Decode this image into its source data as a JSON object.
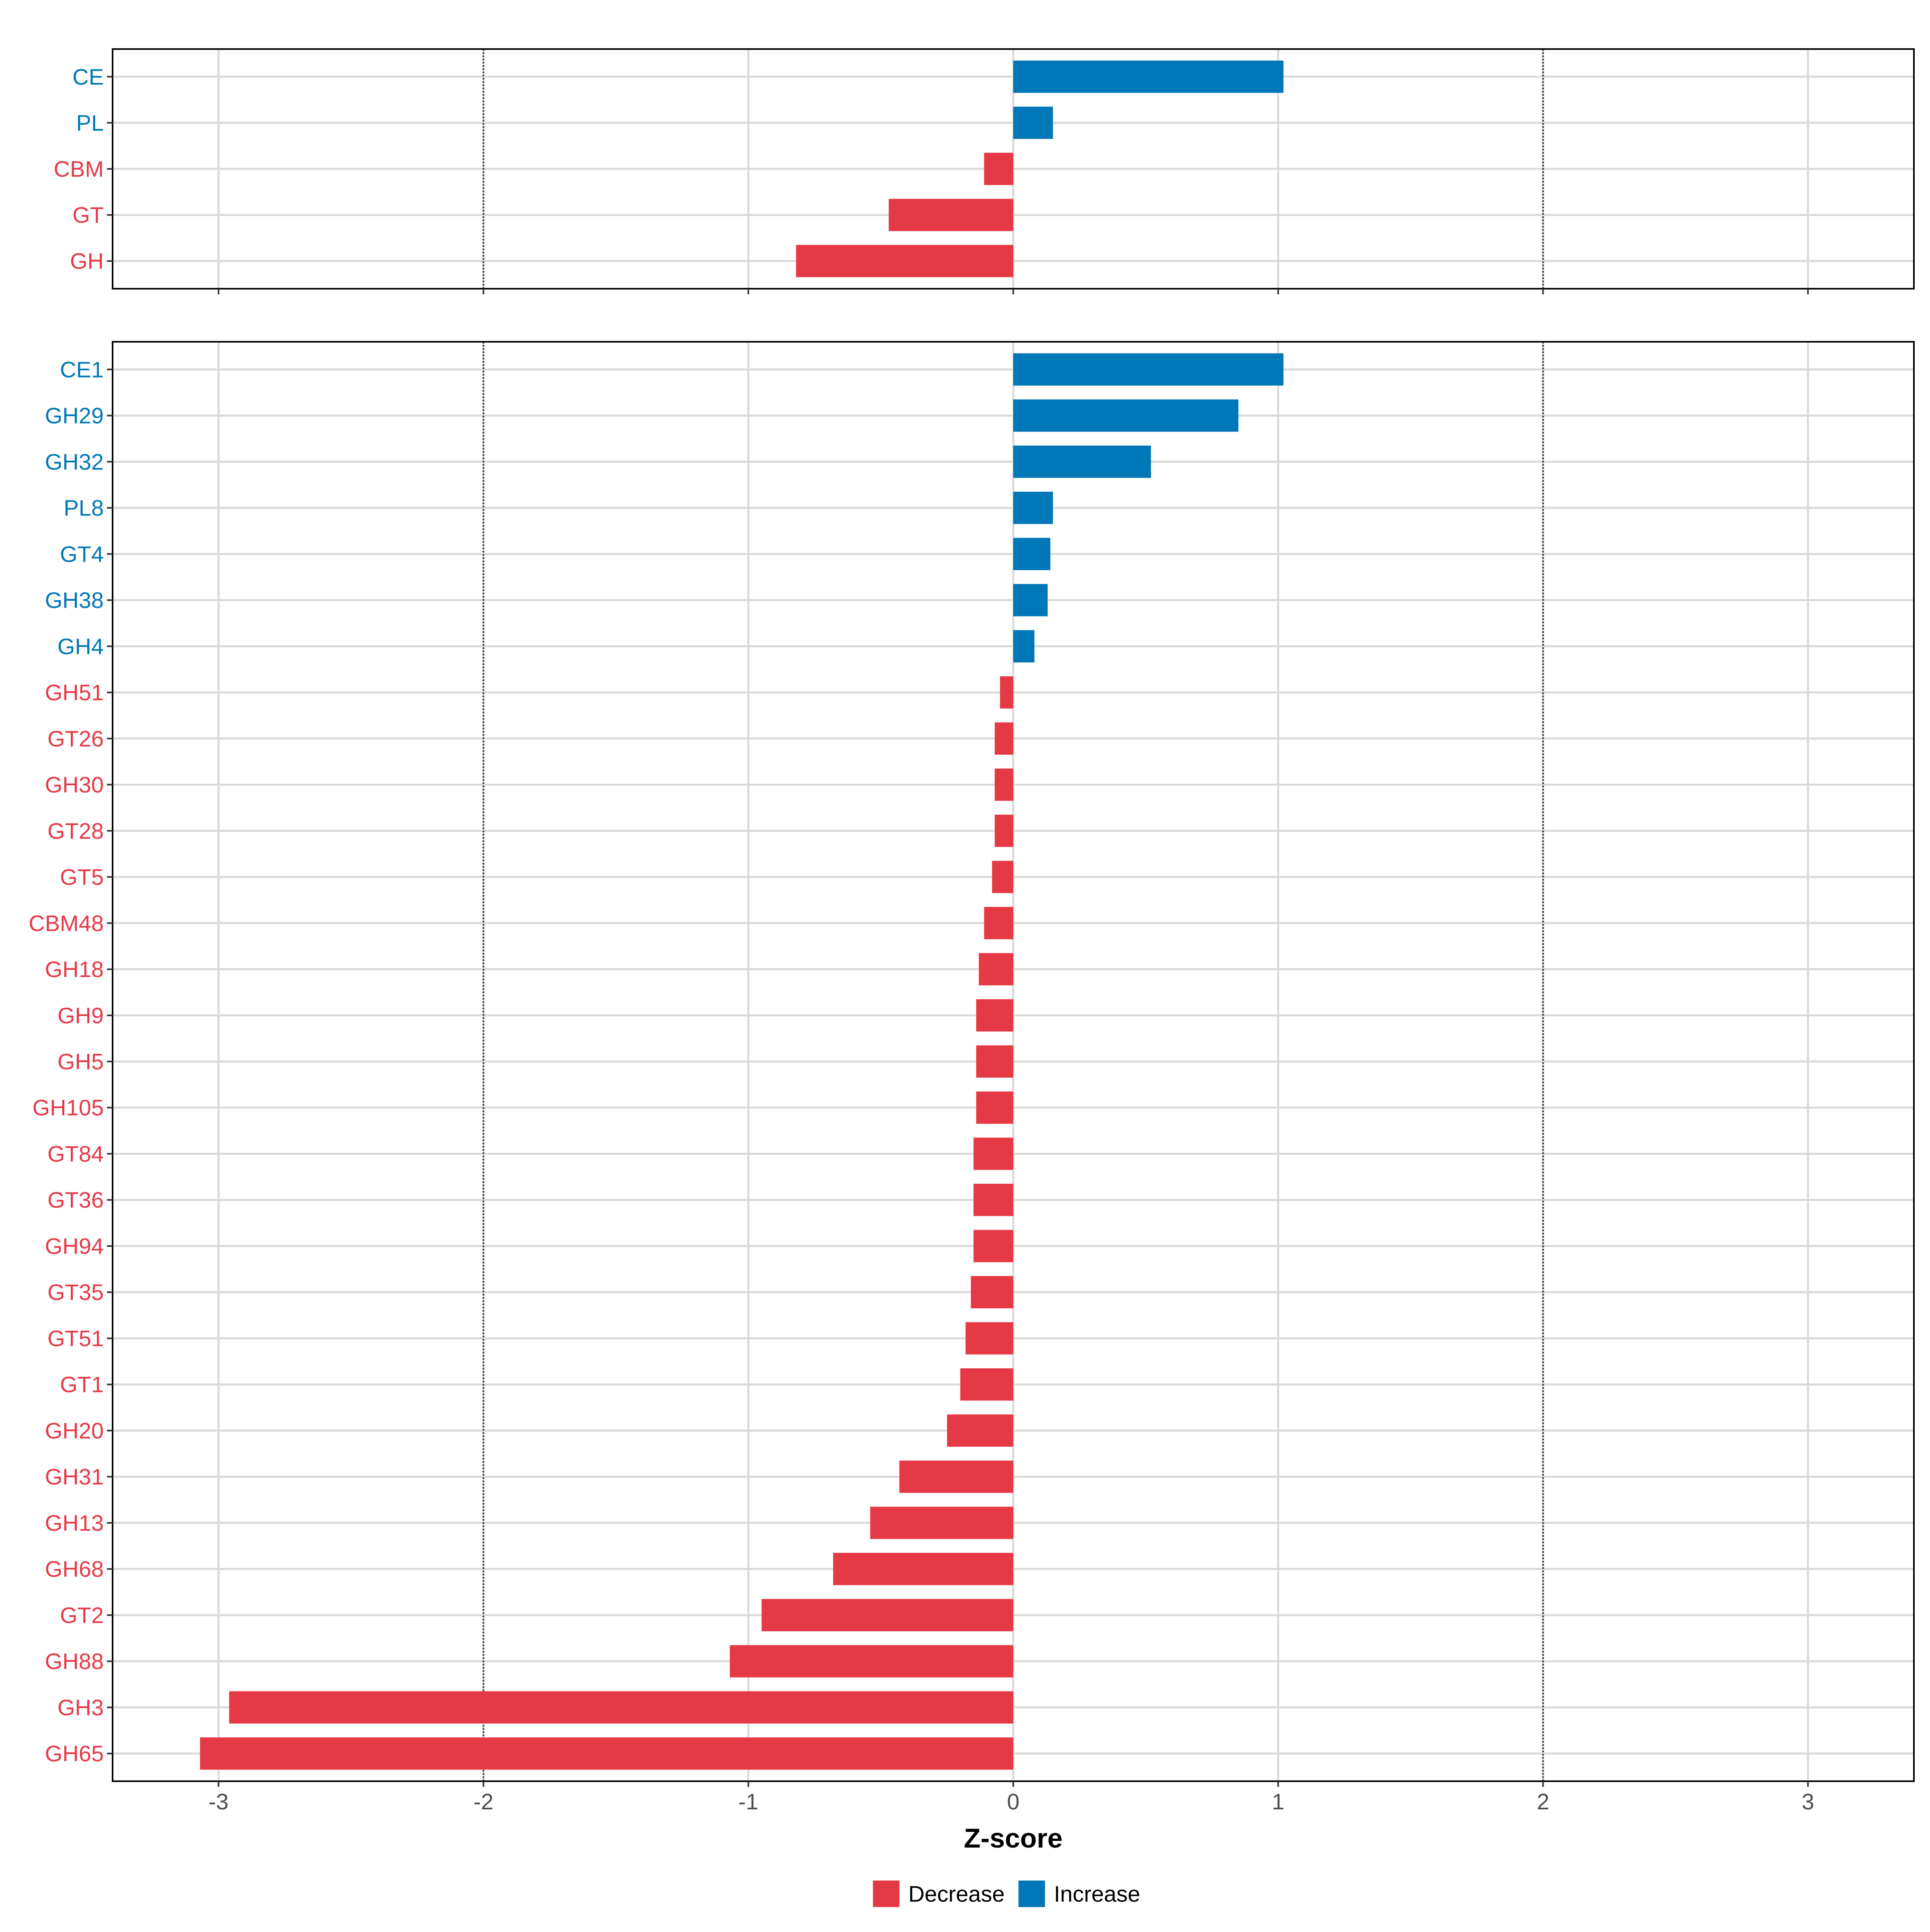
{
  "colors": {
    "decrease": "#E63946",
    "increase": "#0077B6"
  },
  "chart_data": [
    {
      "type": "bar",
      "orientation": "horizontal",
      "panel": "top",
      "categories": [
        "CE",
        "PL",
        "CBM",
        "GT",
        "GH"
      ],
      "values": [
        1.02,
        0.15,
        -0.11,
        -0.47,
        -0.82
      ],
      "directions": [
        "Increase",
        "Increase",
        "Decrease",
        "Decrease",
        "Decrease"
      ],
      "xlim": [
        -3.4,
        3.4
      ],
      "xticks": [
        -3,
        -2,
        -1,
        0,
        1,
        2,
        3
      ],
      "reference_lines": [
        -2,
        2
      ],
      "grid": true
    },
    {
      "type": "bar",
      "orientation": "horizontal",
      "panel": "bottom",
      "categories": [
        "CE1",
        "GH29",
        "GH32",
        "PL8",
        "GT4",
        "GH38",
        "GH4",
        "GH51",
        "GT26",
        "GH30",
        "GT28",
        "GT5",
        "CBM48",
        "GH18",
        "GH9",
        "GH5",
        "GH105",
        "GT84",
        "GT36",
        "GH94",
        "GT35",
        "GT51",
        "GT1",
        "GH20",
        "GH31",
        "GH13",
        "GH68",
        "GT2",
        "GH88",
        "GH3",
        "GH65"
      ],
      "values": [
        1.02,
        0.85,
        0.52,
        0.15,
        0.14,
        0.13,
        0.08,
        -0.05,
        -0.07,
        -0.07,
        -0.07,
        -0.08,
        -0.11,
        -0.13,
        -0.14,
        -0.14,
        -0.14,
        -0.15,
        -0.15,
        -0.15,
        -0.16,
        -0.18,
        -0.2,
        -0.25,
        -0.43,
        -0.54,
        -0.68,
        -0.95,
        -1.07,
        -2.96,
        -3.07
      ],
      "directions": [
        "Increase",
        "Increase",
        "Increase",
        "Increase",
        "Increase",
        "Increase",
        "Increase",
        "Decrease",
        "Decrease",
        "Decrease",
        "Decrease",
        "Decrease",
        "Decrease",
        "Decrease",
        "Decrease",
        "Decrease",
        "Decrease",
        "Decrease",
        "Decrease",
        "Decrease",
        "Decrease",
        "Decrease",
        "Decrease",
        "Decrease",
        "Decrease",
        "Decrease",
        "Decrease",
        "Decrease",
        "Decrease",
        "Decrease",
        "Decrease"
      ],
      "xlim": [
        -3.4,
        3.4
      ],
      "xticks": [
        -3,
        -2,
        -1,
        0,
        1,
        2,
        3
      ],
      "xtick_labels": [
        "-3",
        "-2",
        "-1",
        "0",
        "1",
        "2",
        "3"
      ],
      "reference_lines": [
        -2,
        2
      ],
      "xlabel": "Z-score",
      "grid": true
    }
  ],
  "legend": {
    "position": "bottom",
    "items": [
      {
        "label": "Decrease",
        "color_key": "decrease"
      },
      {
        "label": "Increase",
        "color_key": "increase"
      }
    ]
  }
}
